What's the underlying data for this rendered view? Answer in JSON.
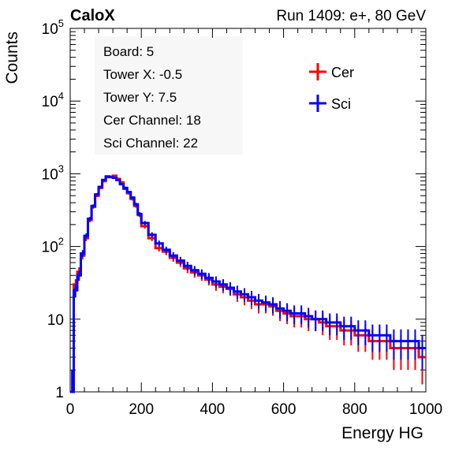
{
  "header": {
    "brand": "CaloX",
    "run_label": "Run 1409: e+, 80 GeV"
  },
  "info_box": {
    "lines": [
      "Board: 5",
      "Tower X: -0.5",
      "Tower Y: 7.5",
      "Cer Channel: 18",
      "Sci Channel: 22"
    ]
  },
  "colors": {
    "cer": "#ff0000",
    "sci": "#0000ff",
    "axis": "#000000",
    "info_box_bg": "#f7f7f7"
  },
  "chart_data": {
    "type": "line",
    "title": "",
    "xlabel": "Energy HG",
    "ylabel": "Counts",
    "xlim": [
      0,
      1000
    ],
    "ylim": [
      1,
      100000
    ],
    "yscale": "log",
    "grid": false,
    "legend_position": "top-right",
    "x_ticks": [
      0,
      200,
      400,
      600,
      800,
      1000
    ],
    "x_tick_labels": [
      "0",
      "200",
      "400",
      "600",
      "800",
      "1000"
    ],
    "y_ticks": [
      1,
      10,
      100,
      1000,
      10000,
      100000
    ],
    "y_tick_labels": [
      "1",
      "10",
      "10^2",
      "10^3",
      "10^4",
      "10^5"
    ],
    "x": [
      0,
      10,
      20,
      30,
      40,
      50,
      60,
      70,
      80,
      90,
      100,
      110,
      120,
      130,
      140,
      150,
      160,
      170,
      180,
      190,
      200,
      220,
      240,
      260,
      280,
      300,
      320,
      340,
      360,
      380,
      400,
      420,
      440,
      460,
      480,
      500,
      520,
      540,
      560,
      580,
      600,
      620,
      640,
      660,
      680,
      700,
      720,
      740,
      760,
      780,
      800,
      820,
      840,
      860,
      880,
      900,
      920,
      940,
      960,
      980,
      1000
    ],
    "series": [
      {
        "name": "Cer",
        "values": [
          1,
          30,
          45,
          75,
          130,
          230,
          350,
          500,
          640,
          790,
          900,
          910,
          940,
          850,
          760,
          620,
          540,
          450,
          360,
          270,
          190,
          130,
          95,
          85,
          70,
          60,
          50,
          44,
          40,
          35,
          30,
          28,
          26,
          22,
          20,
          18,
          16,
          16,
          15,
          13,
          12,
          11,
          11,
          10,
          10,
          9,
          8,
          8,
          7,
          7,
          6,
          6,
          5,
          5,
          5,
          4,
          4,
          4,
          4,
          3,
          4
        ]
      },
      {
        "name": "Sci",
        "values": [
          1,
          25,
          40,
          80,
          140,
          240,
          360,
          520,
          660,
          820,
          920,
          900,
          880,
          820,
          720,
          640,
          560,
          470,
          380,
          280,
          210,
          145,
          110,
          90,
          75,
          64,
          54,
          47,
          42,
          37,
          33,
          30,
          27,
          24,
          22,
          20,
          18,
          17,
          16,
          14,
          13,
          12,
          12,
          11,
          10,
          10,
          9,
          9,
          8,
          8,
          7,
          7,
          6,
          6,
          6,
          5,
          5,
          5,
          5,
          4,
          5
        ]
      }
    ]
  }
}
